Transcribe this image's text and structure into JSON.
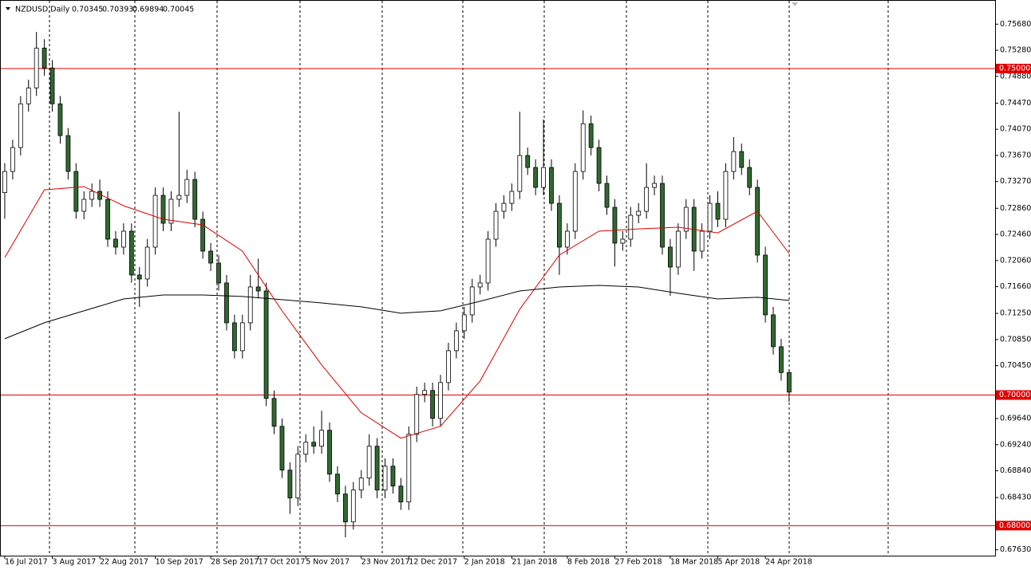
{
  "chart_data": {
    "type": "candlestick",
    "header": {
      "symbol": "NZDUSD,Daily",
      "ohlc": [
        "0.70345",
        "0.70393",
        "0.69894",
        "0.70045"
      ]
    },
    "bull_color": "#ffffff",
    "bear_color": "#2f6a2f",
    "outline_color": "#000000",
    "open": [
      0.731,
      0.73424,
      0.7379,
      0.7446,
      0.74704,
      0.75314,
      0.75009,
      0.7446,
      0.73973,
      0.73424,
      0.72814,
      0.72997,
      0.73119,
      0.72997,
      0.72387,
      0.72265,
      0.72509,
      0.71838,
      0.71777,
      0.72265,
      0.73058,
      0.72631,
      0.72997,
      0.73058,
      0.73302,
      0.72692,
      0.72204,
      0.72021,
      0.71716,
      0.71106,
      0.70679,
      0.71106,
      0.71655,
      0.71594,
      0.69948,
      0.69521,
      0.6885,
      0.68423,
      0.69094,
      0.69277,
      0.69216,
      0.6946,
      0.68789,
      0.68484,
      0.68057,
      0.68545,
      0.68728,
      0.69216,
      0.68545,
      0.68911,
      0.68606,
      0.68362,
      0.69399,
      0.70009,
      0.7007,
      0.69643,
      0.70191,
      0.70679,
      0.70984,
      0.71228,
      0.71655,
      0.71716,
      0.72387,
      0.72814,
      0.72936,
      0.73119,
      0.73668,
      0.73485,
      0.7318,
      0.73485,
      0.72936,
      0.72265,
      0.72509,
      0.73424,
      0.74155,
      0.7379,
      0.73241,
      0.72875,
      0.72326,
      0.72387,
      0.72753,
      0.72814,
      0.7318,
      0.73241,
      0.72265,
      0.7196,
      0.72509,
      0.72875,
      0.72204,
      0.72509,
      0.72936,
      0.72692,
      0.73424,
      0.73729,
      0.73485,
      0.7318,
      0.72143,
      0.71228,
      0.7074,
      0.70345
    ],
    "high": [
      0.7355,
      0.7391,
      0.7458,
      0.7483,
      0.7556,
      0.7545,
      0.7513,
      0.7458,
      0.7409,
      0.7355,
      0.7312,
      0.7324,
      0.733,
      0.7312,
      0.7251,
      0.7263,
      0.7263,
      0.7196,
      0.7239,
      0.7318,
      0.7318,
      0.7312,
      0.7434,
      0.7345,
      0.7342,
      0.7281,
      0.7233,
      0.7214,
      0.7184,
      0.7123,
      0.7123,
      0.7184,
      0.7209,
      0.7172,
      0.7007,
      0.6964,
      0.6897,
      0.6922,
      0.694,
      0.6952,
      0.6976,
      0.6958,
      0.6891,
      0.6861,
      0.6867,
      0.6885,
      0.694,
      0.6934,
      0.6903,
      0.6903,
      0.6873,
      0.6952,
      0.7013,
      0.7019,
      0.7019,
      0.7031,
      0.708,
      0.7111,
      0.7135,
      0.7178,
      0.7184,
      0.7251,
      0.7294,
      0.7306,
      0.7324,
      0.7434,
      0.7379,
      0.7361,
      0.7422,
      0.7361,
      0.7306,
      0.7263,
      0.7355,
      0.7436,
      0.7428,
      0.7391,
      0.7336,
      0.73,
      0.7251,
      0.7288,
      0.7294,
      0.7355,
      0.7336,
      0.7336,
      0.7239,
      0.7263,
      0.73,
      0.73,
      0.7263,
      0.7306,
      0.7312,
      0.7355,
      0.7395,
      0.7385,
      0.7361,
      0.733,
      0.7227,
      0.7135,
      0.7086,
      0.70393
    ],
    "low": [
      0.727,
      0.733,
      0.7367,
      0.7434,
      0.7458,
      0.7489,
      0.7434,
      0.7385,
      0.733,
      0.727,
      0.7269,
      0.7288,
      0.7288,
      0.7227,
      0.7215,
      0.7215,
      0.7172,
      0.7135,
      0.7166,
      0.7215,
      0.7251,
      0.7251,
      0.7288,
      0.7294,
      0.7257,
      0.7209,
      0.719,
      0.716,
      0.7099,
      0.7056,
      0.7056,
      0.7099,
      0.7148,
      0.6983,
      0.694,
      0.6873,
      0.6818,
      0.683,
      0.6897,
      0.691,
      0.691,
      0.6867,
      0.6836,
      0.6782,
      0.6794,
      0.6842,
      0.6861,
      0.6842,
      0.6842,
      0.6849,
      0.6824,
      0.6824,
      0.6928,
      0.6989,
      0.6952,
      0.6952,
      0.7007,
      0.7056,
      0.7086,
      0.7111,
      0.7154,
      0.716,
      0.7227,
      0.727,
      0.7282,
      0.73,
      0.7337,
      0.7306,
      0.7306,
      0.7282,
      0.7184,
      0.7215,
      0.7239,
      0.733,
      0.7367,
      0.7312,
      0.7276,
      0.7197,
      0.7221,
      0.7227,
      0.7263,
      0.727,
      0.7306,
      0.7215,
      0.7152,
      0.7184,
      0.7239,
      0.719,
      0.7209,
      0.7239,
      0.7257,
      0.7257,
      0.733,
      0.7337,
      0.7306,
      0.7203,
      0.7111,
      0.7062,
      0.7022,
      0.69894
    ],
    "close": [
      0.73424,
      0.7379,
      0.7446,
      0.74704,
      0.75314,
      0.75009,
      0.7446,
      0.73973,
      0.73424,
      0.72814,
      0.72997,
      0.73119,
      0.72997,
      0.72387,
      0.72265,
      0.72509,
      0.71838,
      0.71777,
      0.72265,
      0.73058,
      0.72631,
      0.72997,
      0.73058,
      0.73302,
      0.72692,
      0.72204,
      0.72021,
      0.71716,
      0.71106,
      0.70679,
      0.71106,
      0.71655,
      0.71594,
      0.69948,
      0.69521,
      0.6885,
      0.68423,
      0.69094,
      0.69277,
      0.69216,
      0.6946,
      0.68789,
      0.68484,
      0.68057,
      0.68545,
      0.68728,
      0.69216,
      0.68545,
      0.68911,
      0.68606,
      0.68362,
      0.69399,
      0.70009,
      0.7007,
      0.69643,
      0.70191,
      0.70679,
      0.70984,
      0.71228,
      0.71655,
      0.71716,
      0.72387,
      0.72814,
      0.72936,
      0.73119,
      0.73668,
      0.73485,
      0.7318,
      0.73485,
      0.72936,
      0.72265,
      0.72509,
      0.73424,
      0.74155,
      0.7379,
      0.73241,
      0.72875,
      0.72326,
      0.72387,
      0.72753,
      0.72814,
      0.7318,
      0.73241,
      0.72265,
      0.7196,
      0.72509,
      0.72875,
      0.72204,
      0.72509,
      0.72936,
      0.72692,
      0.73424,
      0.73729,
      0.73485,
      0.7318,
      0.72143,
      0.71228,
      0.7074,
      0.70345,
      0.70045
    ],
    "lines": [
      {
        "color": "#e00000",
        "x": [
          0,
          5,
          10,
          15,
          20,
          25,
          30,
          35,
          40,
          45,
          50,
          55,
          60,
          65,
          70,
          75,
          80,
          85,
          90,
          95,
          99
        ],
        "values": [
          0.72106,
          0.73143,
          0.73192,
          0.72899,
          0.72692,
          0.72606,
          0.72204,
          0.71289,
          0.7046,
          0.69728,
          0.69338,
          0.69521,
          0.70216,
          0.71314,
          0.72143,
          0.72509,
          0.72545,
          0.7257,
          0.72484,
          0.72814,
          0.72167
        ]
      },
      {
        "color": "#000000",
        "x": [
          0,
          5,
          10,
          15,
          20,
          25,
          30,
          35,
          40,
          45,
          50,
          55,
          60,
          65,
          70,
          75,
          80,
          85,
          90,
          95,
          99
        ],
        "values": [
          0.70862,
          0.71106,
          0.71289,
          0.71472,
          0.71533,
          0.71533,
          0.71509,
          0.7146,
          0.71411,
          0.7135,
          0.71253,
          0.71289,
          0.71436,
          0.71594,
          0.71655,
          0.71679,
          0.71655,
          0.71558,
          0.71472,
          0.71497,
          0.71448
        ]
      }
    ],
    "levels": [
      {
        "value": 0.75,
        "label": "0.75000"
      },
      {
        "value": 0.7,
        "label": "0.70000"
      },
      {
        "value": 0.68,
        "label": "0.68000"
      }
    ],
    "level_color": "#e00000",
    "xlim": [
      -0.6,
      125
    ],
    "ylim": [
      0.6754,
      0.7605
    ],
    "xticks": [
      {
        "value": 0,
        "label": "16 Jul 2017"
      },
      {
        "value": 6,
        "label": "3 Aug 2017"
      },
      {
        "value": 12,
        "label": "22 Aug 2017"
      },
      {
        "value": 19,
        "label": "10 Sep 2017"
      },
      {
        "value": 26,
        "label": "28 Sep 2017"
      },
      {
        "value": 32,
        "label": "17 Oct 2017"
      },
      {
        "value": 38,
        "label": "5 Nov 2017"
      },
      {
        "value": 45,
        "label": "23 Nov 2017"
      },
      {
        "value": 51,
        "label": "12 Dec 2017"
      },
      {
        "value": 58,
        "label": "2 Jan 2018"
      },
      {
        "value": 64,
        "label": "21 Jan 2018"
      },
      {
        "value": 71,
        "label": "8 Feb 2018"
      },
      {
        "value": 77,
        "label": "27 Feb 2018"
      },
      {
        "value": 84,
        "label": "18 Mar 2018"
      },
      {
        "value": 90,
        "label": "5 Apr 2018"
      },
      {
        "value": 96,
        "label": "24 Apr 2018"
      }
    ],
    "yticks": [
      {
        "value": 0.7568,
        "label": "0.75680"
      },
      {
        "value": 0.7528,
        "label": "0.75280"
      },
      {
        "value": 0.7488,
        "label": "0.74880"
      },
      {
        "value": 0.7447,
        "label": "0.74470"
      },
      {
        "value": 0.7407,
        "label": "0.74070"
      },
      {
        "value": 0.7367,
        "label": "0.73670"
      },
      {
        "value": 0.7327,
        "label": "0.73270"
      },
      {
        "value": 0.7286,
        "label": "0.72860"
      },
      {
        "value": 0.7246,
        "label": "0.72460"
      },
      {
        "value": 0.7206,
        "label": "0.72060"
      },
      {
        "value": 0.7166,
        "label": "0.71660"
      },
      {
        "value": 0.7125,
        "label": "0.71250"
      },
      {
        "value": 0.7085,
        "label": "0.70850"
      },
      {
        "value": 0.7045,
        "label": "0.70450"
      },
      {
        "value": 0.6964,
        "label": "0.69640"
      },
      {
        "value": 0.6924,
        "label": "0.69240"
      },
      {
        "value": 0.6884,
        "label": "0.68840"
      },
      {
        "value": 0.6843,
        "label": "0.68430"
      },
      {
        "value": 0.6763,
        "label": "0.67630"
      }
    ]
  }
}
